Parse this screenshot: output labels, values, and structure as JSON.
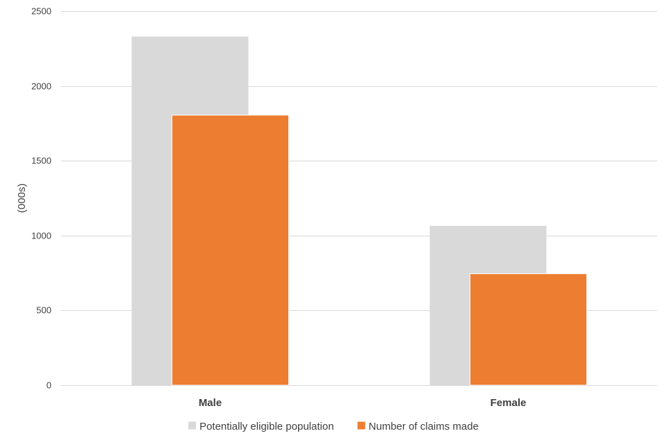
{
  "chart_data": {
    "type": "bar",
    "categories": [
      "Male",
      "Female"
    ],
    "series": [
      {
        "name": "Potentially eligible population",
        "values": [
          2330,
          1065
        ],
        "color": "#d9d9d9"
      },
      {
        "name": "Number of claims made",
        "values": [
          1805,
          745
        ],
        "color": "#ed7d31"
      }
    ],
    "ylabel": "(000s)",
    "ylim": [
      0,
      2500
    ],
    "yticks": [
      0,
      500,
      1000,
      1500,
      2000,
      2500
    ],
    "grid": true,
    "gridline_color": "#d9d9d9",
    "legend": "bottom-center"
  }
}
